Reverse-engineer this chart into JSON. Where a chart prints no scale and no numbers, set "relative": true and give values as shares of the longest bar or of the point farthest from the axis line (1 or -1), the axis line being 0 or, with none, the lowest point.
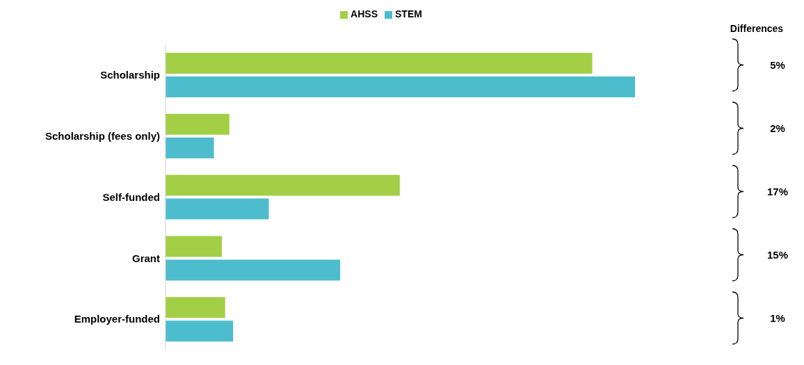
{
  "chart_data": {
    "type": "bar",
    "orientation": "horizontal",
    "relative": true,
    "categories": [
      "Scholarship",
      "Scholarship (fees only)",
      "Self-funded",
      "Grant",
      "Employer-funded"
    ],
    "series": [
      {
        "name": "AHSS",
        "color": "#a2cf45",
        "values": [
          0.909,
          0.136,
          0.499,
          0.12,
          0.127
        ]
      },
      {
        "name": "STEM",
        "color": "#4dbccc",
        "values": [
          1,
          0.103,
          0.22,
          0.372,
          0.144
        ]
      }
    ],
    "legend": "top",
    "annotations": [
      "Differences",
      "5%",
      "2%",
      "17%",
      "15%",
      "1%"
    ]
  }
}
